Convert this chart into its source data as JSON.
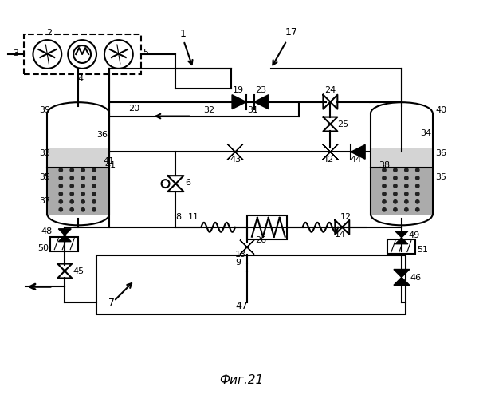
{
  "title": "Фиг.21",
  "bg_color": "#ffffff",
  "line_color": "#000000",
  "fig_width": 6.06,
  "fig_height": 5.0,
  "dpi": 100
}
